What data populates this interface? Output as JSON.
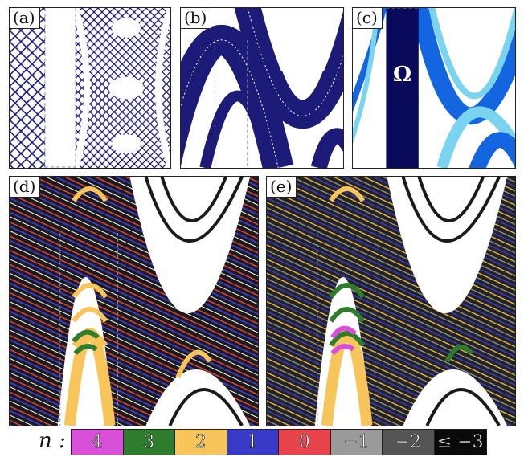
{
  "panels": [
    {
      "id": "a",
      "label": "(a)"
    },
    {
      "id": "b",
      "label": "(b)"
    },
    {
      "id": "c",
      "label": "(c)",
      "region_label": "Ω"
    },
    {
      "id": "d",
      "label": "(d)"
    },
    {
      "id": "e",
      "label": "(e)"
    }
  ],
  "legend": {
    "label": "n :",
    "items": [
      {
        "text": "4",
        "color": "#d94fd9"
      },
      {
        "text": "3",
        "color": "#2e7d2e"
      },
      {
        "text": "2",
        "color": "#f7c55a"
      },
      {
        "text": "1",
        "color": "#3a3ac8"
      },
      {
        "text": "0",
        "color": "#e8434a"
      },
      {
        "text": "−1",
        "color": "#9a9a9a"
      },
      {
        "text": "−2",
        "color": "#555555"
      },
      {
        "text": "≤ −3",
        "color": "#0a0a0a"
      }
    ]
  },
  "colors": {
    "navy": "#1c1c78",
    "blue": "#1466e0",
    "lightblue": "#7ad4ef",
    "dark": "#0a0a5a"
  }
}
